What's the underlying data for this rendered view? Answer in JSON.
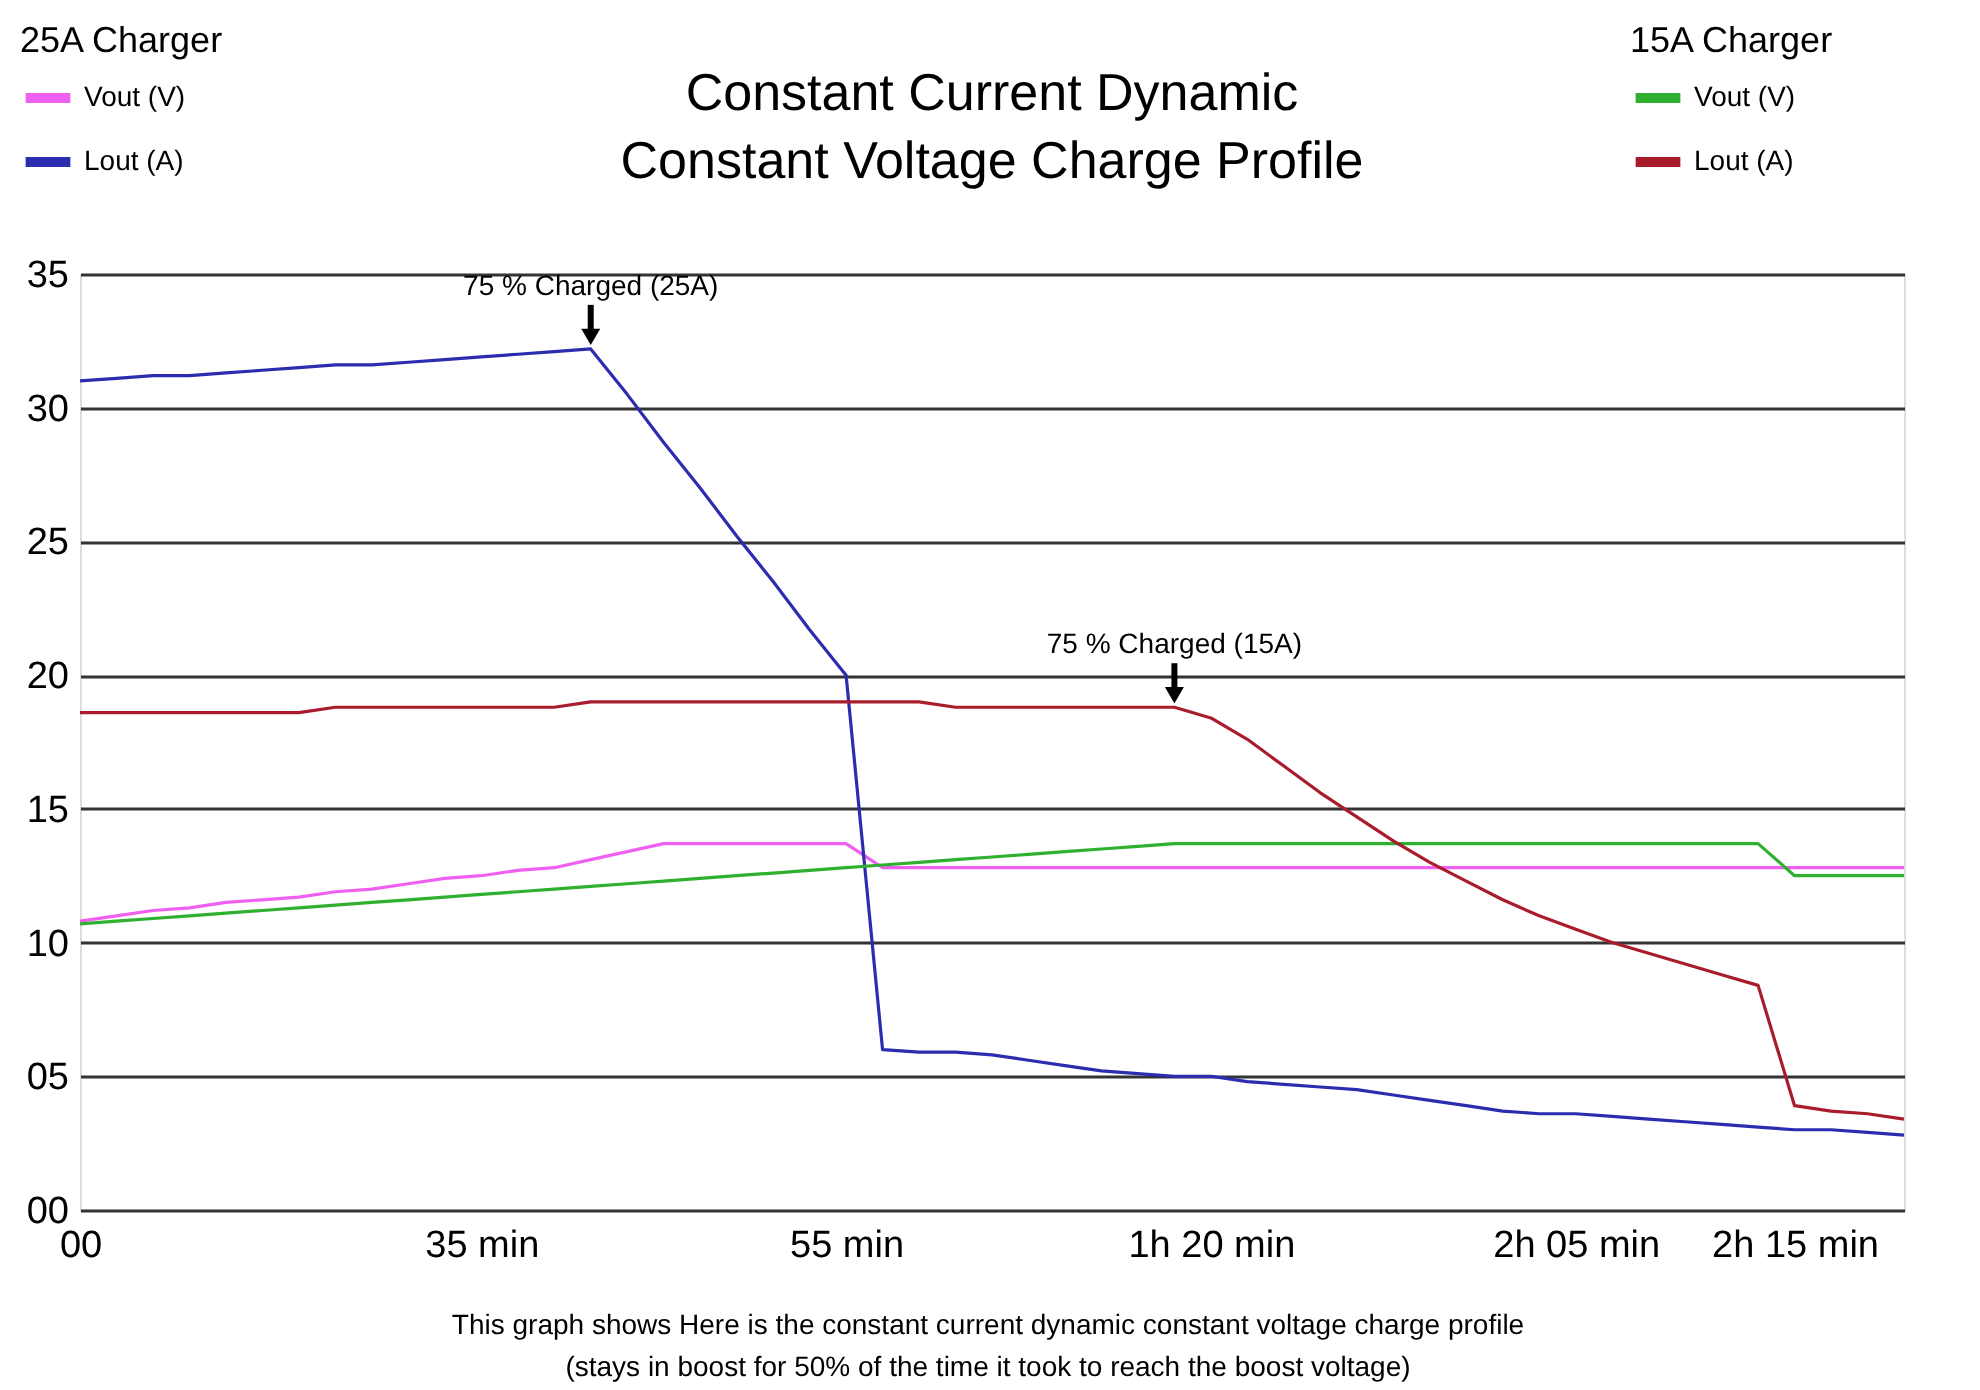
{
  "chart_data": {
    "type": "line",
    "title": "Constant Current Dynamic Constant Voltage Charge Profile",
    "legend_title": "25A Charger",
    "categories": [
      "00",
      null,
      null,
      null,
      null,
      null,
      null,
      null,
      null,
      null,
      null,
      "35 min",
      null,
      null,
      null,
      null,
      null,
      null,
      null,
      null,
      null,
      "55 min",
      null,
      null,
      null,
      null,
      null,
      null,
      null,
      null,
      null,
      "1h 20 min",
      null,
      null,
      null,
      null,
      null,
      null,
      null,
      null,
      null,
      "2h 05 min",
      null,
      null,
      null,
      null,
      null,
      "2h 15 min",
      null,
      null,
      null
    ],
    "ylim": [
      0,
      35
    ],
    "yticks": [
      {
        "value": 0,
        "label": "00"
      },
      {
        "value": 5,
        "label": "05"
      },
      10,
      15,
      20,
      25,
      30,
      35
    ],
    "grid": "y",
    "legend": "top",
    "series": [
      {
        "name": "Vout (V)",
        "color": "#f060f0",
        "values": [
          10.8,
          11.0,
          11.2,
          11.3,
          11.5,
          11.6,
          11.7,
          11.9,
          12.0,
          12.2,
          12.4,
          12.5,
          12.7,
          12.8,
          13.1,
          13.4,
          13.7,
          13.7,
          13.7,
          13.7,
          13.7,
          13.7,
          12.8,
          12.8,
          12.8,
          12.8,
          12.8,
          12.8,
          12.8,
          12.8,
          12.8,
          12.8,
          12.8,
          12.8,
          12.8,
          12.8,
          12.8,
          12.8,
          12.8,
          12.8,
          12.8,
          12.8,
          12.8,
          12.8,
          12.8,
          12.8,
          12.8,
          12.8,
          12.8,
          12.8,
          12.8
        ]
      },
      {
        "name": "Lout (A)",
        "color": "#2c2cb0",
        "values": [
          31.0,
          31.1,
          31.2,
          31.2,
          31.3,
          31.4,
          31.5,
          31.6,
          31.6,
          31.7,
          31.8,
          31.9,
          32.0,
          32.1,
          32.2,
          30.5,
          28.7,
          27.0,
          25.2,
          23.5,
          21.7,
          20.0,
          6.0,
          5.9,
          5.9,
          5.8,
          5.6,
          5.4,
          5.2,
          5.1,
          5.0,
          5.0,
          4.8,
          4.7,
          4.6,
          4.5,
          4.3,
          4.1,
          3.9,
          3.7,
          3.6,
          3.6,
          3.5,
          3.4,
          3.3,
          3.2,
          3.1,
          3.0,
          3.0,
          2.9,
          2.8
        ]
      },
      {
        "name": "Vout (V)",
        "color": "#30b030",
        "values": [
          10.7,
          10.8,
          10.9,
          11.0,
          11.1,
          11.2,
          11.3,
          11.4,
          11.5,
          11.6,
          11.7,
          11.8,
          11.9,
          12.0,
          12.1,
          12.2,
          12.3,
          12.4,
          12.5,
          12.6,
          12.7,
          12.8,
          12.9,
          13.0,
          13.1,
          13.2,
          13.3,
          13.4,
          13.5,
          13.6,
          13.7,
          13.7,
          13.7,
          13.7,
          13.7,
          13.7,
          13.7,
          13.7,
          13.7,
          13.7,
          13.7,
          13.7,
          13.7,
          13.7,
          13.7,
          13.7,
          13.7,
          12.5,
          12.5,
          12.5,
          12.5
        ]
      },
      {
        "name": "Lout (A)",
        "color": "#a81c2c",
        "values": [
          18.6,
          18.6,
          18.6,
          18.6,
          18.6,
          18.6,
          18.6,
          18.8,
          18.8,
          18.8,
          18.8,
          18.8,
          18.8,
          18.8,
          19.0,
          19.0,
          19.0,
          19.0,
          19.0,
          19.0,
          19.0,
          19.0,
          19.0,
          19.0,
          18.8,
          18.8,
          18.8,
          18.8,
          18.8,
          18.8,
          18.8,
          18.4,
          17.6,
          16.6,
          15.6,
          14.7,
          13.8,
          13.0,
          12.3,
          11.6,
          11.0,
          10.5,
          10.0,
          9.6,
          9.2,
          8.8,
          8.4,
          3.9,
          3.7,
          3.6,
          3.4
        ]
      }
    ],
    "annotations": [
      {
        "text": "75 % Charged (25A)",
        "y": 32.2
      },
      {
        "text": "75 % Charged (15A)",
        "y": 18.8
      },
      "15A Charger",
      "This graph shows Here is the constant current dynamic constant voltage charge profile",
      "(stays in boost for 50% of the time it took to reach the boost voltage)"
    ]
  }
}
